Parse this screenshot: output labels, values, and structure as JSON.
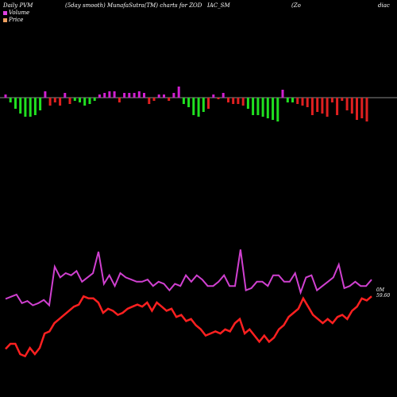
{
  "header": {
    "left": "Daily PVM",
    "middle": "(5day smooth) MunafaSutra(TM) charts for ZOD",
    "symbol": "IAC_SM",
    "company": "(Zo",
    "company_cont": "diac"
  },
  "colors": {
    "background": "#000000",
    "volume_swatch": "#e040e0",
    "price_swatch": "#f0a060",
    "up_bar": "#d020d0",
    "green_bar": "#20e020",
    "red_bar": "#e02020",
    "volume_line": "#d040d0",
    "price_line": "#ff2020"
  },
  "chart_data": {
    "type": "bar",
    "legend": {
      "placement": "top-left",
      "volume": "Volume",
      "price": "Price"
    },
    "price_label": "0M",
    "price_value_label": "59.60",
    "series": [
      {
        "name": "Volume",
        "kind": "bars",
        "values": [
          4,
          -6,
          -14,
          -20,
          -24,
          -24,
          -22,
          -16,
          8,
          -10,
          -6,
          -10,
          6,
          -8,
          -4,
          -6,
          -10,
          -8,
          -4,
          4,
          6,
          8,
          8,
          -6,
          6,
          6,
          6,
          8,
          6,
          -8,
          -4,
          4,
          4,
          -4,
          6,
          14,
          -8,
          -12,
          -22,
          -24,
          -18,
          -14,
          4,
          -2,
          6,
          -6,
          -8,
          -8,
          -10,
          -14,
          -22,
          -22,
          -24,
          -26,
          -28,
          -30,
          10,
          -6,
          -6,
          -8,
          -10,
          -12,
          -22,
          -18,
          -20,
          -24,
          -6,
          -22,
          -4,
          -16,
          -20,
          -28,
          -26,
          -30
        ]
      },
      {
        "name": "Volume",
        "kind": "line",
        "values": [
          36,
          38,
          40,
          32,
          34,
          30,
          32,
          35,
          30,
          66,
          56,
          60,
          58,
          62,
          52,
          56,
          60,
          80,
          50,
          58,
          48,
          60,
          56,
          54,
          52,
          52,
          54,
          48,
          52,
          50,
          44,
          50,
          48,
          58,
          52,
          58,
          54,
          48,
          48,
          52,
          58,
          48,
          48,
          82,
          44,
          46,
          52,
          52,
          48,
          58,
          58,
          52,
          52,
          60,
          42,
          56,
          58,
          44,
          48,
          52,
          56,
          68,
          46,
          48,
          52,
          48,
          48,
          54
        ]
      },
      {
        "name": "Price",
        "kind": "line",
        "values": [
          35,
          40,
          40,
          30,
          28,
          36,
          30,
          36,
          50,
          52,
          60,
          64,
          68,
          72,
          76,
          78,
          86,
          84,
          84,
          80,
          70,
          74,
          72,
          68,
          70,
          74,
          76,
          78,
          76,
          80,
          72,
          80,
          76,
          72,
          74,
          66,
          68,
          62,
          64,
          58,
          54,
          48,
          50,
          52,
          50,
          54,
          52,
          60,
          64,
          50,
          54,
          48,
          42,
          48,
          42,
          46,
          54,
          58,
          66,
          70,
          74,
          84,
          76,
          68,
          64,
          60,
          64,
          60,
          66,
          68,
          64,
          72,
          76,
          84,
          82,
          86
        ]
      }
    ]
  }
}
